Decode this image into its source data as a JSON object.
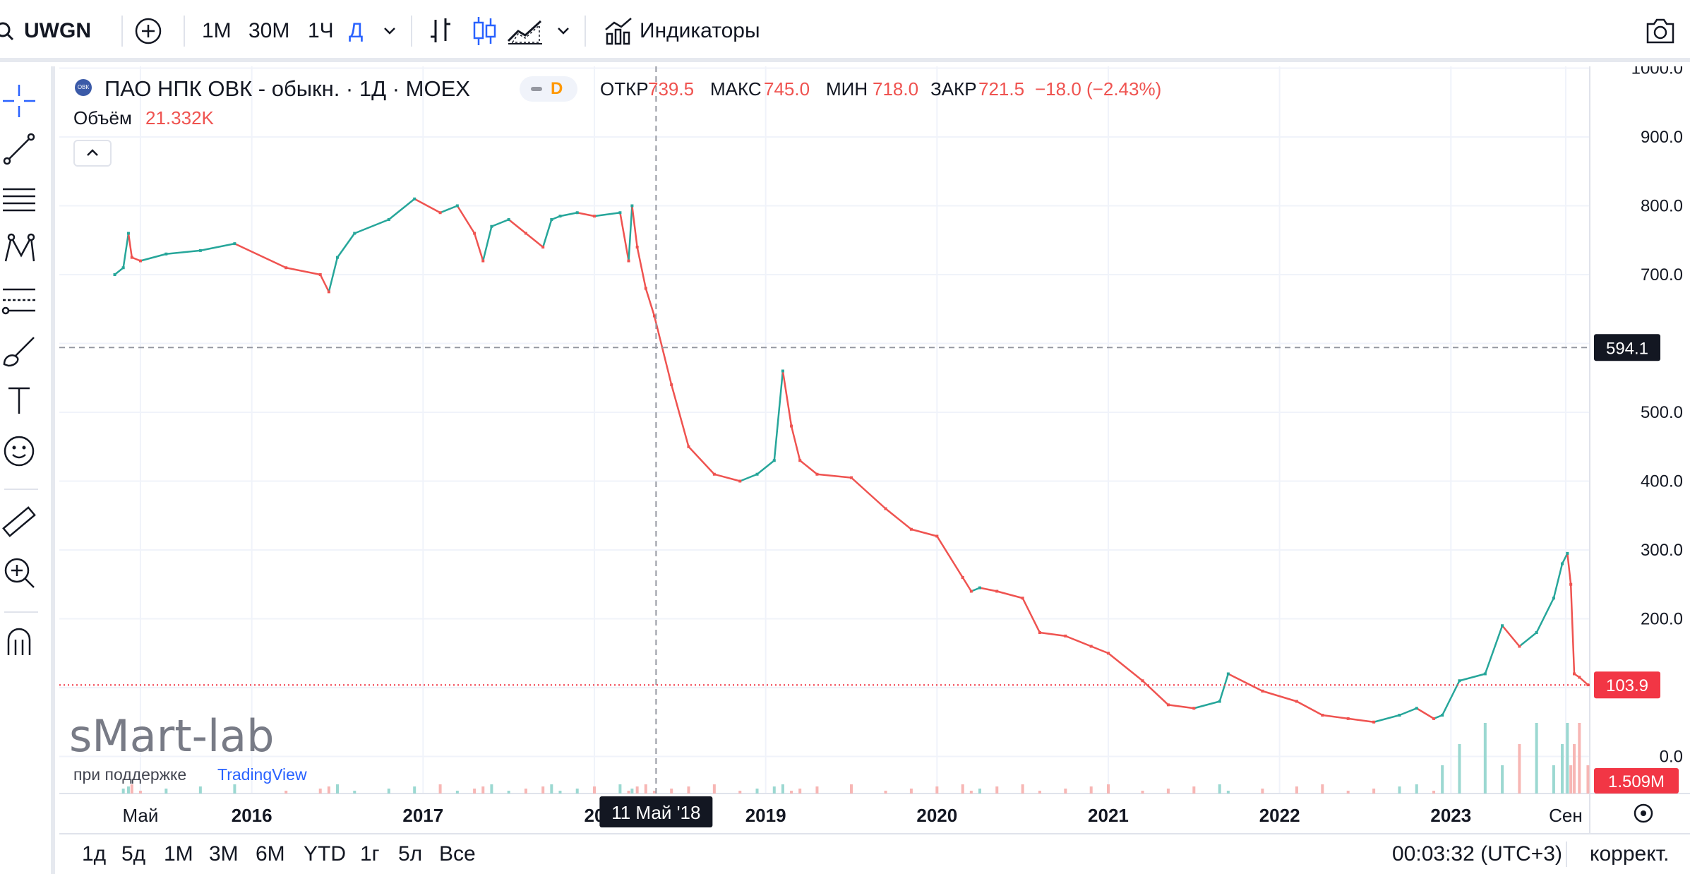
{
  "toolbar": {
    "symbol": "UWGN",
    "intervals": [
      "1М",
      "30М",
      "1Ч",
      "Д"
    ],
    "active_interval": "Д",
    "indicators_label": "Индикаторы"
  },
  "legend": {
    "title": "ПАО НПК ОВК - обыкн. · 1Д · MOEX",
    "logo_text": "ОВК",
    "badge": "D",
    "open_label": "ОТКР",
    "open_value": "739.5",
    "high_label": "МАКС",
    "high_value": "745.0",
    "low_label": "МИН",
    "low_value": "718.0",
    "close_label": "ЗАКР",
    "close_value": "721.5",
    "change": "−18.0 (−2.43%)",
    "volume_label": "Объём",
    "volume_value": "21.332K"
  },
  "crosshair": {
    "price_label": "594.1",
    "date_label": "11 Май '18"
  },
  "last_price_label": "103.9",
  "volume_last_label": "1.509M",
  "watermark": {
    "brand": "sMart-lab",
    "support_text": "при поддержке",
    "support_link": "TradingView"
  },
  "bottom": {
    "ranges": [
      "1д",
      "5д",
      "1М",
      "3М",
      "6М",
      "YTD",
      "1г",
      "5л",
      "Все"
    ],
    "clock": "00:03:32 (UTC+3)",
    "adjust": "коррект."
  },
  "colors": {
    "up": "#26a69a",
    "down": "#ef5350",
    "accent": "#2962ff",
    "last": "#f23645",
    "crosshair": "#131722"
  },
  "chart_data": {
    "type": "line",
    "title": "ПАО НПК ОВК - обыкн. · 1Д · MOEX",
    "xlabel": "",
    "ylabel": "",
    "y_ticks": [
      1000.0,
      900.0,
      800.0,
      700.0,
      600.0,
      500.0,
      400.0,
      300.0,
      200.0,
      100.0,
      0.0
    ],
    "y_tick_labels": [
      "1000.0",
      "900.0",
      "800.0",
      "700.0",
      "",
      "500.0",
      "400.0",
      "300.0",
      "200.0",
      "",
      "0.0"
    ],
    "x_tick_labels": [
      {
        "t": 2015.35,
        "label": "Май"
      },
      {
        "t": 2016.0,
        "label": "2016"
      },
      {
        "t": 2017.0,
        "label": "2017"
      },
      {
        "t": 2018.0,
        "label": "20"
      },
      {
        "t": 2019.0,
        "label": "2019"
      },
      {
        "t": 2020.0,
        "label": "2020"
      },
      {
        "t": 2021.0,
        "label": "2021"
      },
      {
        "t": 2022.0,
        "label": "2022"
      },
      {
        "t": 2023.0,
        "label": "2023"
      },
      {
        "t": 2023.67,
        "label": "Сен"
      }
    ],
    "ylim": [
      0,
      1000
    ],
    "grid": true,
    "series": [
      {
        "x": [
          2015.2,
          2015.25,
          2015.28,
          2015.3,
          2015.35,
          2015.5,
          2015.7,
          2015.9,
          2016.2,
          2016.4,
          2016.45,
          2016.5,
          2016.6,
          2016.8,
          2016.95,
          2017.1,
          2017.2,
          2017.3,
          2017.35,
          2017.4,
          2017.5,
          2017.6,
          2017.7,
          2017.75,
          2017.8,
          2017.9,
          2018.0,
          2018.15,
          2018.2,
          2018.22,
          2018.25,
          2018.3,
          2018.35,
          2018.45,
          2018.55,
          2018.7,
          2018.85,
          2018.95,
          2019.05,
          2019.1,
          2019.15,
          2019.2,
          2019.3,
          2019.5,
          2019.7,
          2019.85,
          2020.0,
          2020.15,
          2020.2,
          2020.25,
          2020.35,
          2020.5,
          2020.6,
          2020.75,
          2020.9,
          2021.0,
          2021.2,
          2021.35,
          2021.5,
          2021.65,
          2021.7,
          2021.9,
          2022.1,
          2022.25,
          2022.4,
          2022.55,
          2022.7,
          2022.8,
          2022.9,
          2022.95,
          2023.05,
          2023.2,
          2023.3,
          2023.4,
          2023.5,
          2023.6,
          2023.65,
          2023.68,
          2023.7,
          2023.72,
          2023.75,
          2023.8
        ],
        "values": [
          700,
          710,
          760,
          725,
          720,
          730,
          735,
          745,
          710,
          700,
          675,
          725,
          760,
          780,
          810,
          790,
          800,
          760,
          720,
          770,
          780,
          760,
          740,
          780,
          785,
          790,
          785,
          790,
          720,
          800,
          740,
          680,
          640,
          540,
          450,
          410,
          400,
          410,
          430,
          560,
          480,
          430,
          410,
          405,
          360,
          330,
          320,
          260,
          240,
          245,
          240,
          230,
          180,
          175,
          160,
          150,
          110,
          75,
          70,
          80,
          120,
          95,
          80,
          60,
          55,
          50,
          60,
          70,
          55,
          60,
          110,
          120,
          190,
          160,
          180,
          230,
          280,
          295,
          250,
          120,
          115,
          104
        ]
      }
    ]
  }
}
